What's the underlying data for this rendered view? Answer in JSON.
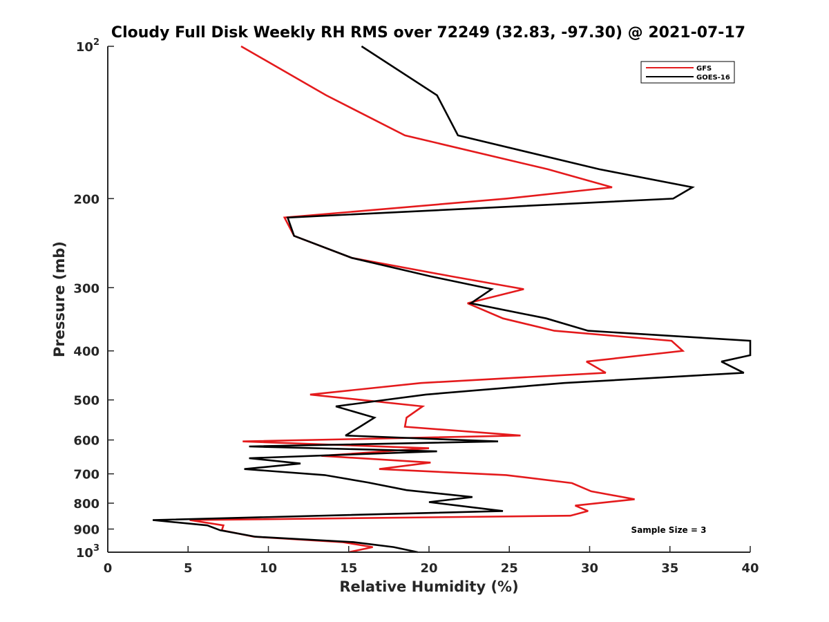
{
  "chart_data": {
    "type": "line",
    "title": "Cloudy Full Disk Weekly RH RMS over 72249 (32.83, -97.30) @ 2021-07-17",
    "xlabel": "Relative Humidity (%)",
    "ylabel": "Pressure (mb)",
    "xlim": [
      0,
      40
    ],
    "ylim": [
      100,
      1000
    ],
    "y_scale": "log",
    "y_reversed": true,
    "x_ticks": [
      "0",
      "5",
      "10",
      "15",
      "20",
      "25",
      "30",
      "35",
      "40"
    ],
    "y_ticks": [
      {
        "value": 100,
        "base": "10",
        "exp": "2"
      },
      {
        "value": 200,
        "label": "200"
      },
      {
        "value": 300,
        "label": "300"
      },
      {
        "value": 400,
        "label": "400"
      },
      {
        "value": 500,
        "label": "500"
      },
      {
        "value": 600,
        "label": "600"
      },
      {
        "value": 700,
        "label": "700"
      },
      {
        "value": 800,
        "label": "800"
      },
      {
        "value": 900,
        "label": "900"
      },
      {
        "value": 1000,
        "base": "10",
        "exp": "3"
      }
    ],
    "grid": false,
    "legend_position": "top-right",
    "annotation": "Sample Size = 3",
    "series": [
      {
        "name": "GFS",
        "color": "#e41a1c",
        "points": [
          [
            8.3,
            100
          ],
          [
            13.6,
            125
          ],
          [
            18.5,
            150
          ],
          [
            27.4,
            175
          ],
          [
            31.4,
            190
          ],
          [
            24.8,
            200
          ],
          [
            11.0,
            218
          ],
          [
            11.6,
            237
          ],
          [
            15.2,
            262
          ],
          [
            21.4,
            285
          ],
          [
            25.9,
            302
          ],
          [
            22.4,
            322
          ],
          [
            24.6,
            345
          ],
          [
            27.8,
            365
          ],
          [
            35.1,
            382
          ],
          [
            35.8,
            400
          ],
          [
            29.8,
            420
          ],
          [
            31.0,
            442
          ],
          [
            19.5,
            463
          ],
          [
            12.6,
            488
          ],
          [
            19.6,
            515
          ],
          [
            18.6,
            542
          ],
          [
            18.5,
            565
          ],
          [
            25.7,
            588
          ],
          [
            8.4,
            604
          ],
          [
            20.0,
            623
          ],
          [
            13.3,
            645
          ],
          [
            20.1,
            665
          ],
          [
            16.9,
            685
          ],
          [
            24.8,
            704
          ],
          [
            28.9,
            730
          ],
          [
            30.1,
            758
          ],
          [
            32.8,
            786
          ],
          [
            29.1,
            809
          ],
          [
            29.9,
            829
          ],
          [
            28.8,
            847
          ],
          [
            5.1,
            864
          ],
          [
            7.2,
            885
          ],
          [
            7.1,
            905
          ],
          [
            9.1,
            932
          ],
          [
            14.6,
            955
          ],
          [
            16.5,
            977
          ],
          [
            15.0,
            1000
          ]
        ]
      },
      {
        "name": "GOES-16",
        "color": "#000000",
        "points": [
          [
            15.8,
            100
          ],
          [
            20.5,
            125
          ],
          [
            21.8,
            150
          ],
          [
            30.6,
            175
          ],
          [
            36.4,
            190
          ],
          [
            35.2,
            200
          ],
          [
            11.2,
            218
          ],
          [
            11.6,
            237
          ],
          [
            15.2,
            262
          ],
          [
            20.1,
            285
          ],
          [
            23.9,
            302
          ],
          [
            22.6,
            322
          ],
          [
            27.3,
            345
          ],
          [
            29.9,
            365
          ],
          [
            40.0,
            382
          ],
          [
            40.0,
            408
          ],
          [
            38.2,
            420
          ],
          [
            39.6,
            442
          ],
          [
            28.4,
            463
          ],
          [
            19.8,
            488
          ],
          [
            14.2,
            515
          ],
          [
            16.6,
            542
          ],
          [
            15.7,
            565
          ],
          [
            14.8,
            588
          ],
          [
            24.3,
            604
          ],
          [
            8.8,
            618
          ],
          [
            20.5,
            632
          ],
          [
            8.8,
            652
          ],
          [
            12.0,
            668
          ],
          [
            8.5,
            685
          ],
          [
            13.5,
            704
          ],
          [
            16.2,
            728
          ],
          [
            18.6,
            754
          ],
          [
            22.7,
            778
          ],
          [
            20.0,
            796
          ],
          [
            24.6,
            829
          ],
          [
            2.8,
            864
          ],
          [
            6.2,
            885
          ],
          [
            7.0,
            905
          ],
          [
            9.2,
            932
          ],
          [
            15.3,
            955
          ],
          [
            17.8,
            977
          ],
          [
            19.3,
            1000
          ]
        ]
      }
    ]
  }
}
